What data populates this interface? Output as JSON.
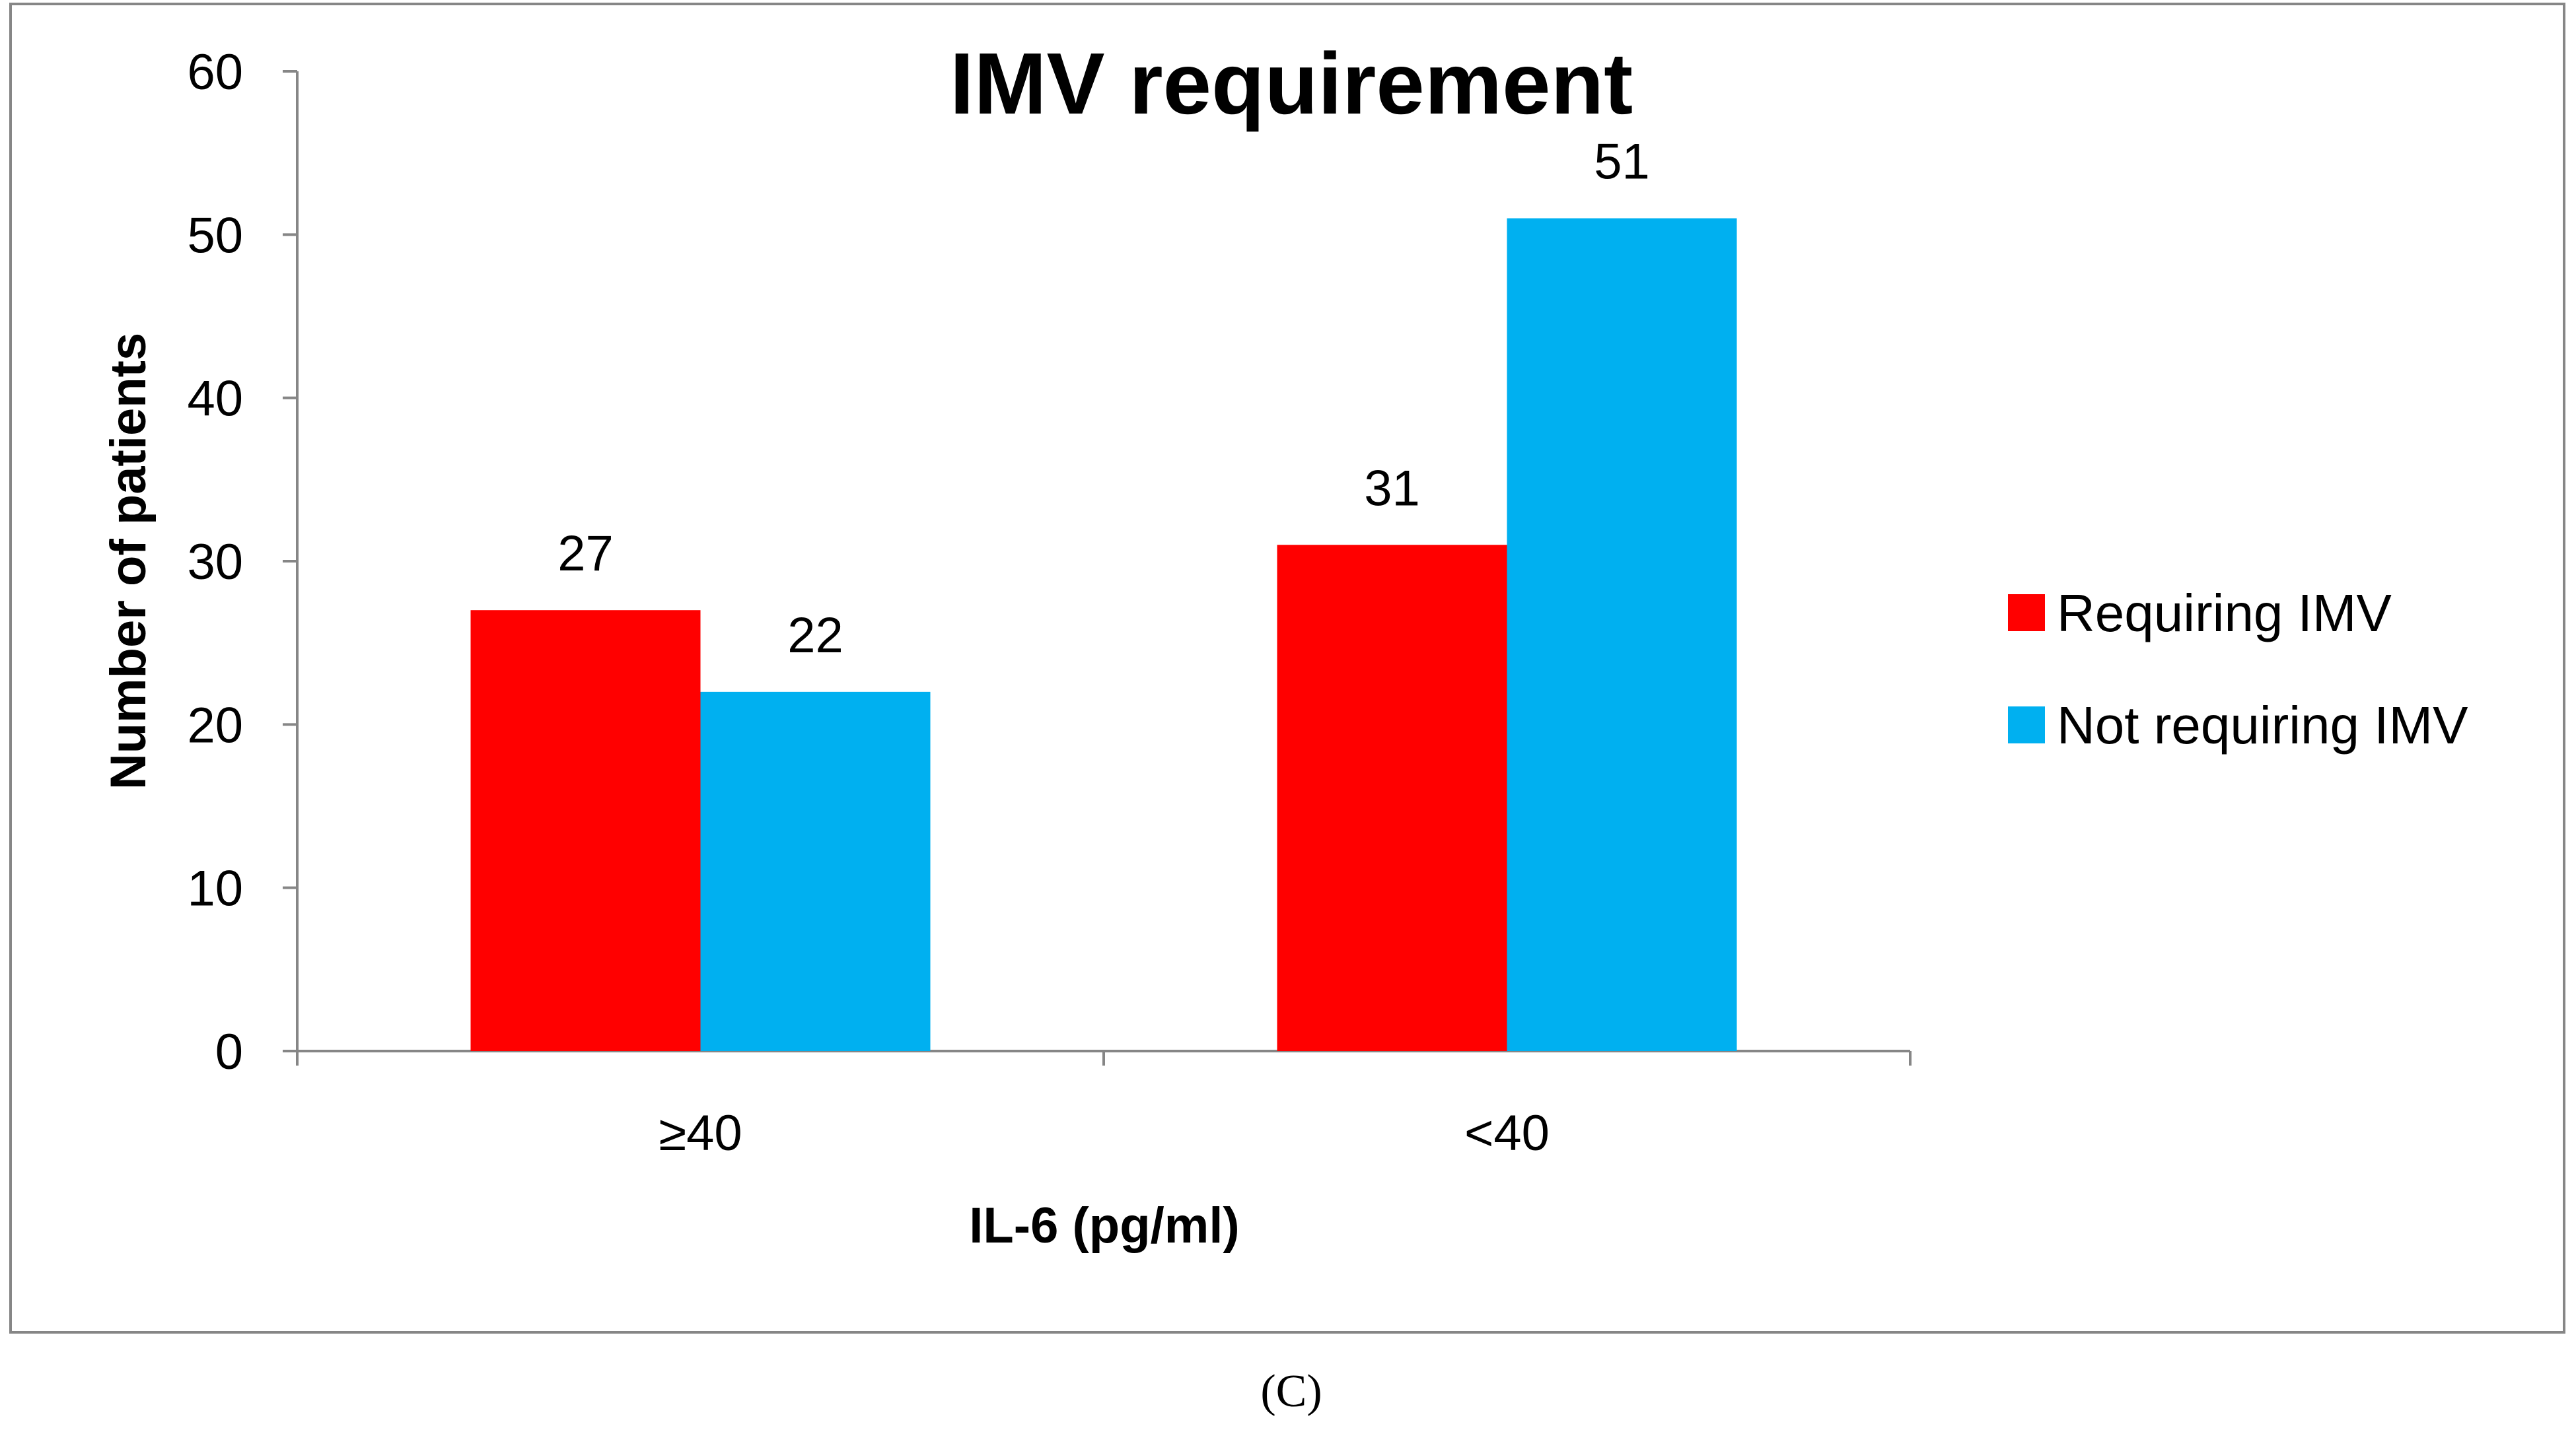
{
  "chart_data": {
    "type": "bar",
    "title": "IMV requirement",
    "xlabel": "IL-6 (pg/ml)",
    "ylabel": "Number of patients",
    "categories": [
      "≥40",
      "<40"
    ],
    "series": [
      {
        "name": "Requiring IMV",
        "values": [
          27,
          31
        ],
        "color": "#ff0000"
      },
      {
        "name": "Not requiring IMV",
        "values": [
          22,
          51
        ],
        "color": "#00b0f0"
      }
    ],
    "ylim": [
      0,
      60
    ],
    "yticks": [
      0,
      10,
      20,
      30,
      40,
      50,
      60
    ],
    "grid": false,
    "legend_position": "right",
    "data_labels": true
  },
  "caption": "(C)"
}
